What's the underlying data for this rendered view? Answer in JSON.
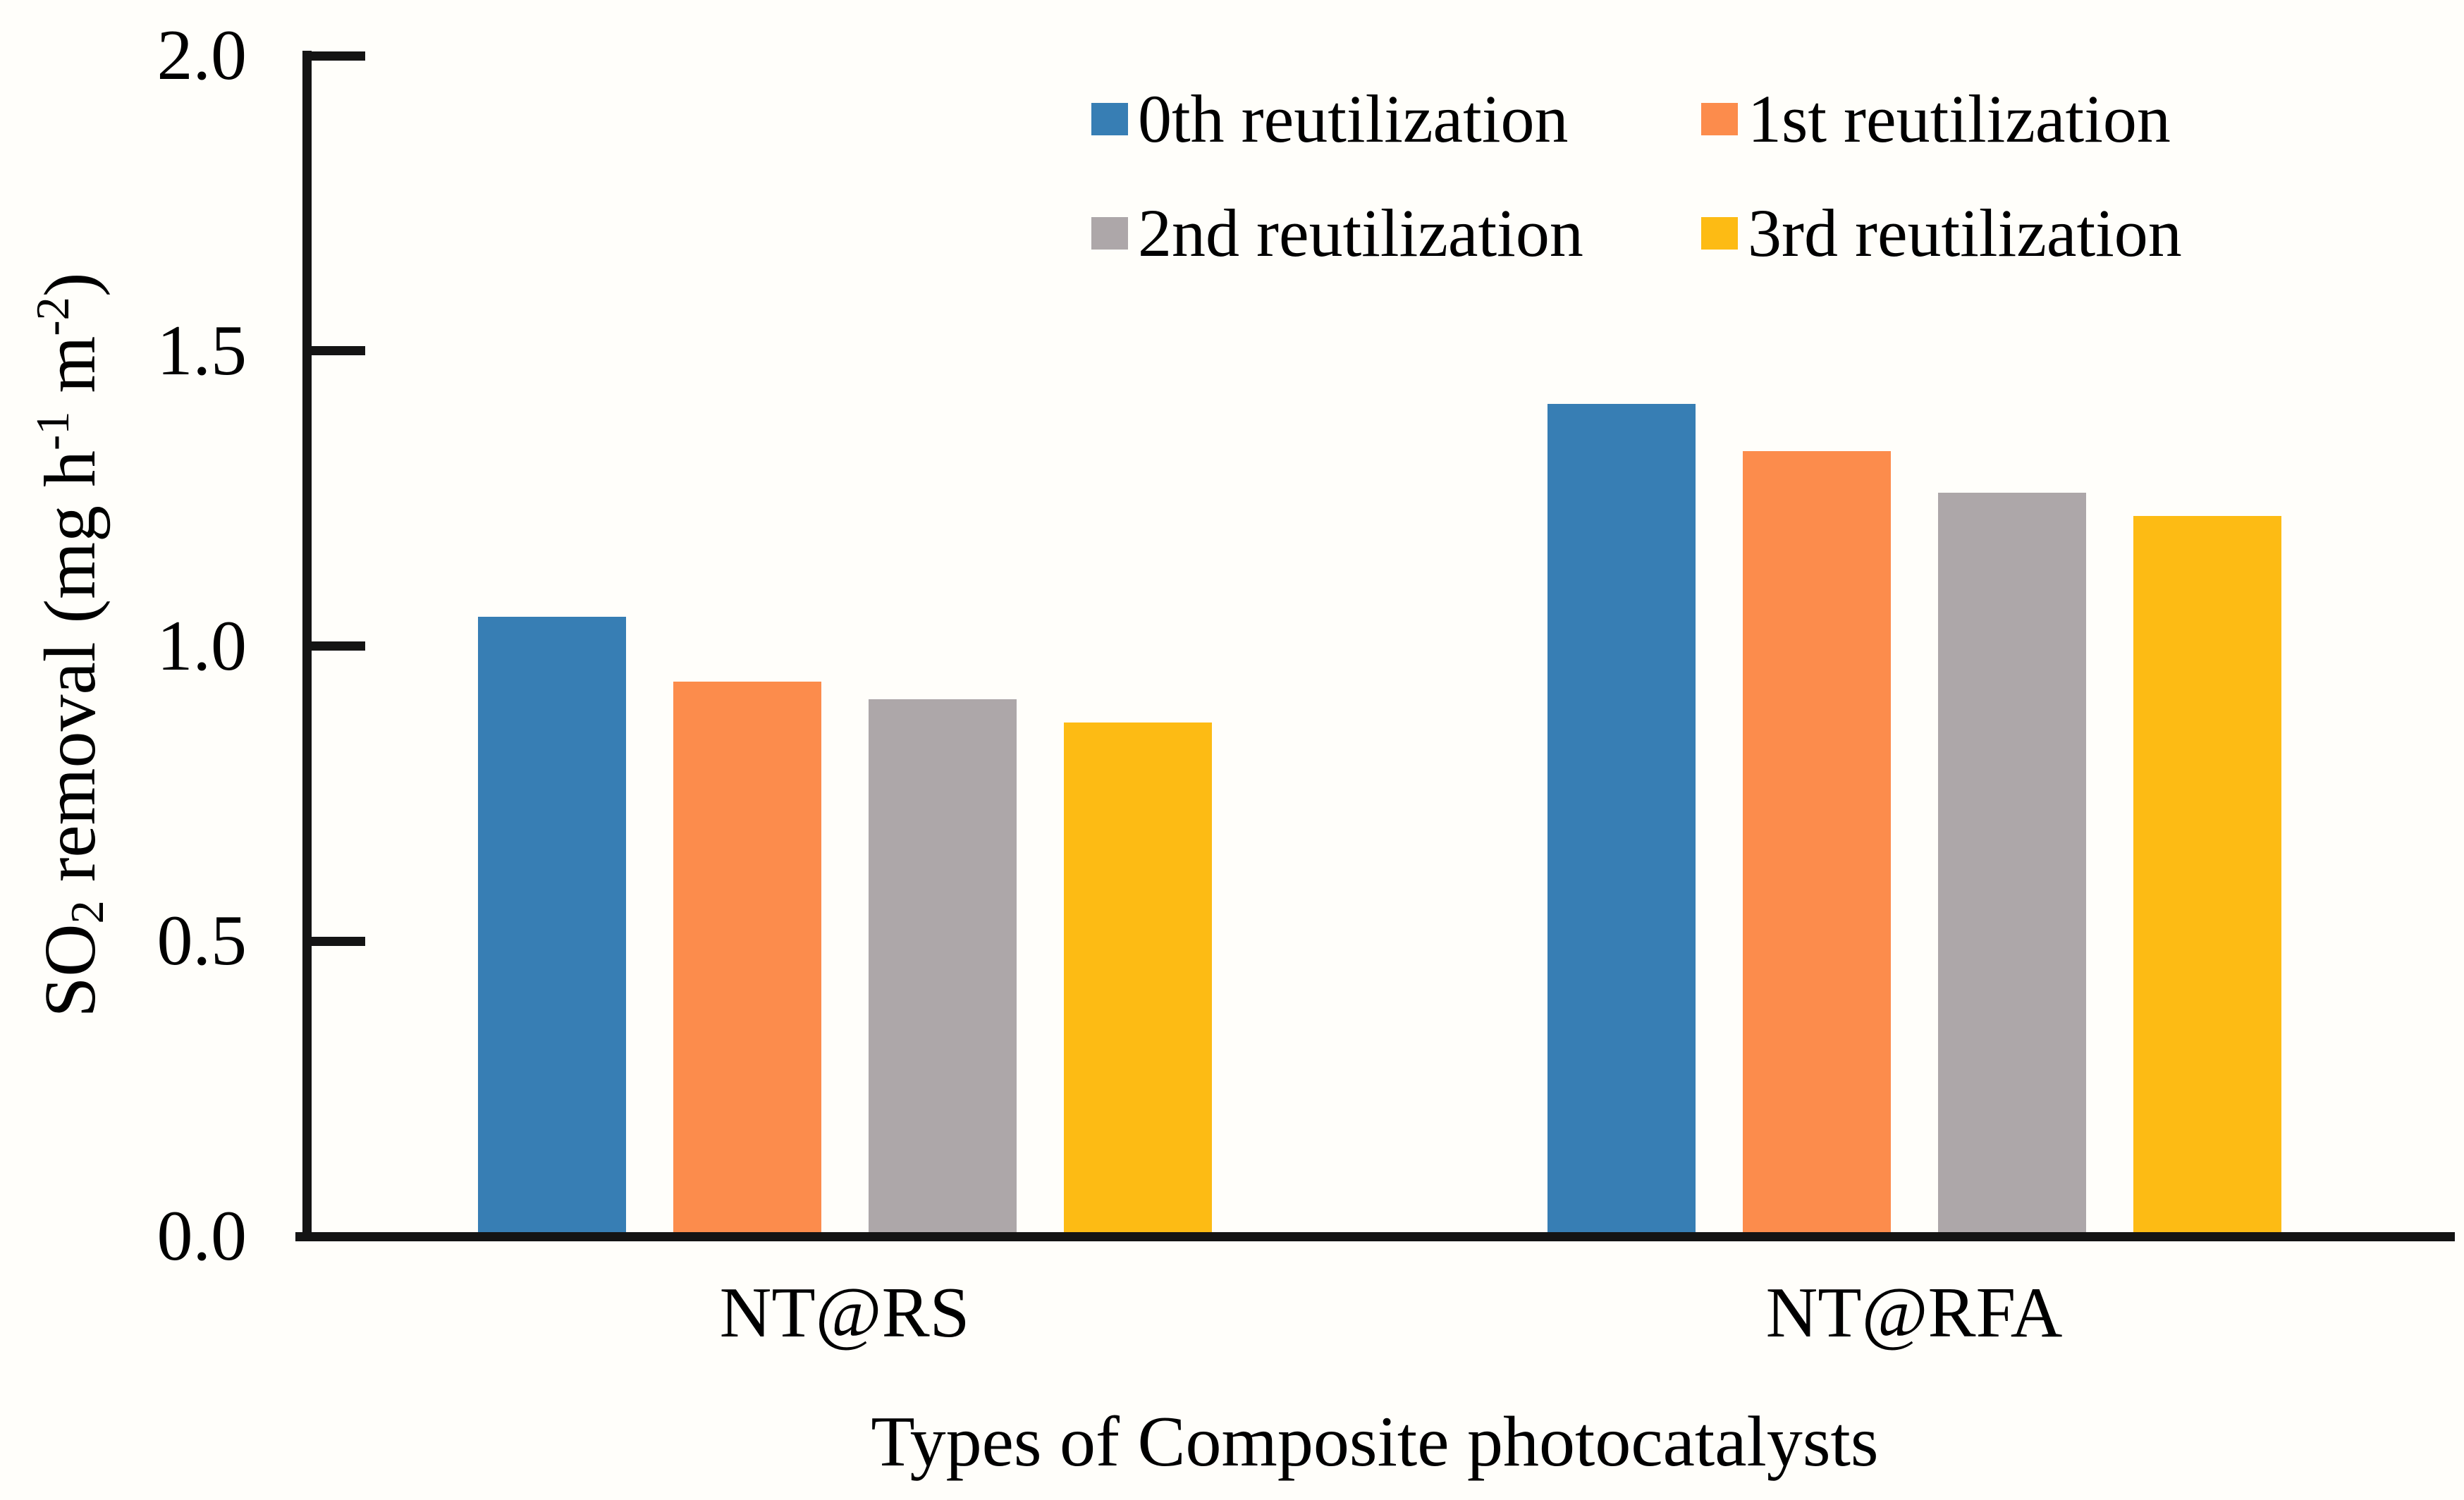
{
  "chart_data": {
    "type": "bar",
    "title": "",
    "categories": [
      "NT@RS",
      "NT@RFA"
    ],
    "series": [
      {
        "name": "0th reutilization",
        "color": "#377EB4",
        "values": [
          1.05,
          1.41
        ]
      },
      {
        "name": "1st reutilization",
        "color": "#FC8C4C",
        "values": [
          0.94,
          1.33
        ]
      },
      {
        "name": "2nd reutilization",
        "color": "#ADA7A9",
        "values": [
          0.91,
          1.26
        ]
      },
      {
        "name": "3rd reutilization",
        "color": "#FDBB14",
        "values": [
          0.87,
          1.22
        ]
      }
    ],
    "xlabel": "Types of Composite photocatalysts",
    "ylabel": "SO2 removal (mg h-1 m-2)",
    "ylabel_parts": {
      "base1": "SO",
      "sub1": "2",
      "base2": " removal (mg h",
      "sup1": "-1",
      "base3": " m",
      "sup2": "-2",
      "base4": ")"
    },
    "ylim": [
      0.0,
      2.0
    ],
    "yticks": [
      "0.0",
      "0.5",
      "1.0",
      "1.5",
      "2.0"
    ],
    "grid": false,
    "legend_position": "top-center-inside"
  },
  "colors": {
    "background": "#FFFEFA",
    "axis": "#141414",
    "text": "#000000"
  }
}
